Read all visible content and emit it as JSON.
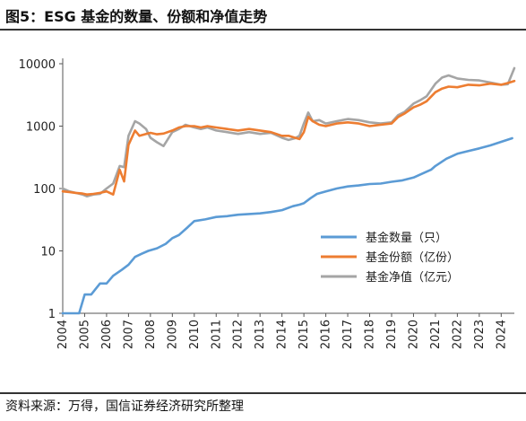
{
  "title": "图5：ESG 基金的数量、份额和净值走势",
  "source": "资料来源：万得，国信证券经济研究所整理",
  "chart_data": {
    "type": "line",
    "yscale": "log",
    "ylim": [
      1,
      10000
    ],
    "yticks": [
      1,
      10,
      100,
      1000,
      10000
    ],
    "ytick_labels": [
      "1",
      "10",
      "100",
      "1000",
      "10000"
    ],
    "xlim": [
      2004.0,
      2024.6
    ],
    "xticks": [
      "2004",
      "2005",
      "2006",
      "2007",
      "2008",
      "2009",
      "2010",
      "2011",
      "2012",
      "2013",
      "2014",
      "2015",
      "2016",
      "2017",
      "2018",
      "2019",
      "2020",
      "2021",
      "2022",
      "2023",
      "2024"
    ],
    "grid": false,
    "legend_position": "center-right",
    "series": [
      {
        "name": "基金数量（只）",
        "color": "#5b9bd5",
        "x": [
          2004.0,
          2004.5,
          2004.75,
          2005.0,
          2005.3,
          2005.7,
          2006.0,
          2006.3,
          2006.7,
          2007.0,
          2007.3,
          2007.6,
          2007.9,
          2008.3,
          2008.7,
          2009.0,
          2009.3,
          2009.7,
          2010.0,
          2010.5,
          2011.0,
          2011.5,
          2012.0,
          2012.5,
          2013.0,
          2013.5,
          2014.0,
          2014.5,
          2014.8,
          2015.0,
          2015.3,
          2015.6,
          2016.0,
          2016.5,
          2017.0,
          2017.5,
          2018.0,
          2018.5,
          2019.0,
          2019.5,
          2020.0,
          2020.5,
          2020.8,
          2021.0,
          2021.5,
          2022.0,
          2022.5,
          2023.0,
          2023.5,
          2024.0,
          2024.5
        ],
        "values": [
          1,
          1,
          1,
          2,
          2,
          3,
          3,
          4,
          5,
          6,
          8,
          9,
          10,
          11,
          13,
          16,
          18,
          24,
          30,
          32,
          35,
          36,
          38,
          39,
          40,
          42,
          45,
          52,
          55,
          58,
          70,
          82,
          90,
          100,
          108,
          112,
          118,
          120,
          128,
          135,
          150,
          180,
          200,
          230,
          300,
          360,
          400,
          440,
          490,
          560,
          640
        ]
      },
      {
        "name": "基金份额（亿份）",
        "color": "#ed7d31",
        "x": [
          2004.0,
          2004.3,
          2004.6,
          2004.9,
          2005.1,
          2005.4,
          2005.7,
          2006.0,
          2006.3,
          2006.6,
          2006.8,
          2007.0,
          2007.3,
          2007.5,
          2007.8,
          2008.0,
          2008.3,
          2008.6,
          2009.0,
          2009.3,
          2009.6,
          2010.0,
          2010.3,
          2010.6,
          2011.0,
          2011.5,
          2012.0,
          2012.5,
          2013.0,
          2013.5,
          2014.0,
          2014.3,
          2014.6,
          2014.8,
          2015.0,
          2015.2,
          2015.4,
          2015.7,
          2016.0,
          2016.5,
          2017.0,
          2017.5,
          2018.0,
          2018.5,
          2019.0,
          2019.3,
          2019.6,
          2020.0,
          2020.3,
          2020.6,
          2021.0,
          2021.3,
          2021.6,
          2022.0,
          2022.5,
          2023.0,
          2023.5,
          2024.0,
          2024.3,
          2024.6
        ],
        "values": [
          90,
          88,
          85,
          83,
          80,
          82,
          85,
          90,
          80,
          200,
          130,
          500,
          850,
          700,
          750,
          780,
          740,
          760,
          850,
          950,
          1000,
          1000,
          950,
          1000,
          950,
          900,
          850,
          900,
          850,
          800,
          700,
          700,
          650,
          620,
          800,
          1400,
          1200,
          1050,
          1000,
          1100,
          1150,
          1100,
          1000,
          1050,
          1100,
          1400,
          1600,
          2000,
          2200,
          2500,
          3500,
          4000,
          4300,
          4200,
          4600,
          4500,
          4800,
          4600,
          4900,
          5300
        ]
      },
      {
        "name": "基金净值（亿元）",
        "color": "#a5a5a5",
        "x": [
          2004.0,
          2004.3,
          2004.6,
          2004.9,
          2005.1,
          2005.4,
          2005.7,
          2006.0,
          2006.3,
          2006.6,
          2006.8,
          2007.0,
          2007.3,
          2007.5,
          2007.8,
          2008.0,
          2008.3,
          2008.6,
          2009.0,
          2009.3,
          2009.6,
          2010.0,
          2010.3,
          2010.6,
          2011.0,
          2011.5,
          2012.0,
          2012.5,
          2013.0,
          2013.5,
          2014.0,
          2014.3,
          2014.6,
          2014.8,
          2015.0,
          2015.2,
          2015.4,
          2015.7,
          2016.0,
          2016.5,
          2017.0,
          2017.5,
          2018.0,
          2018.5,
          2019.0,
          2019.3,
          2019.6,
          2020.0,
          2020.3,
          2020.6,
          2021.0,
          2021.3,
          2021.6,
          2022.0,
          2022.5,
          2023.0,
          2023.5,
          2024.0,
          2024.3,
          2024.6
        ],
        "values": [
          100,
          90,
          85,
          80,
          75,
          80,
          82,
          100,
          120,
          230,
          220,
          700,
          1200,
          1100,
          900,
          650,
          550,
          480,
          800,
          900,
          1050,
          950,
          900,
          950,
          850,
          800,
          750,
          800,
          750,
          780,
          650,
          600,
          640,
          700,
          1100,
          1650,
          1200,
          1250,
          1100,
          1200,
          1300,
          1250,
          1150,
          1100,
          1150,
          1500,
          1700,
          2300,
          2600,
          3000,
          4800,
          6000,
          6500,
          5800,
          5500,
          5400,
          5000,
          4600,
          4700,
          8500
        ]
      }
    ]
  }
}
